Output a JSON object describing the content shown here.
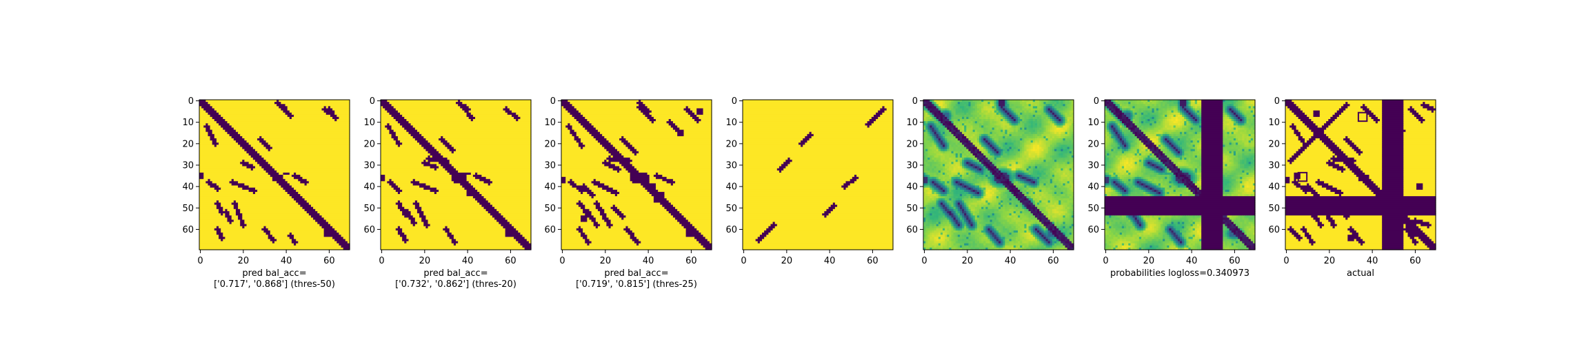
{
  "figure": {
    "colors": {
      "low": "#440154",
      "high": "#fde725"
    },
    "colormap": [
      "#440154",
      "#31688e",
      "#21918c",
      "#35b779",
      "#90d743",
      "#fde725"
    ]
  },
  "chart_data": [
    {
      "type": "heatmap",
      "panel": 1,
      "caption": [
        "pred bal_acc=",
        "['0.717', '0.868'] (thres-50)"
      ],
      "x_ticks": [
        0,
        20,
        40,
        60
      ],
      "y_ticks": [
        0,
        10,
        20,
        30,
        40,
        50,
        60
      ],
      "xlim": [
        0,
        69
      ],
      "ylim": [
        69,
        0
      ],
      "values_kind": "binary",
      "diagonal_width": 2,
      "segments": [
        [
          4,
          38,
          8,
          41
        ],
        [
          15,
          38,
          25,
          42
        ],
        [
          38,
          3,
          42,
          7
        ],
        [
          3,
          12,
          7,
          20
        ],
        [
          30,
          60,
          34,
          65
        ],
        [
          44,
          35,
          49,
          38
        ],
        [
          36,
          1,
          39,
          3
        ],
        [
          58,
          4,
          62,
          7
        ],
        [
          8,
          48,
          10,
          52
        ],
        [
          12,
          52,
          14,
          56
        ],
        [
          8,
          60,
          10,
          64
        ],
        [
          16,
          48,
          20,
          58
        ],
        [
          42,
          63,
          44,
          66
        ],
        [
          60,
          4,
          63,
          8
        ],
        [
          20,
          29,
          24,
          31
        ],
        [
          28,
          18,
          32,
          22
        ]
      ],
      "blobs": [
        [
          0,
          35,
          2,
          1.5,
          0
        ],
        [
          60,
          62,
          2.5,
          2,
          0
        ],
        [
          36,
          36,
          3,
          2,
          0
        ],
        [
          40,
          34,
          2,
          1,
          0
        ]
      ]
    },
    {
      "type": "heatmap",
      "panel": 2,
      "caption": [
        "pred bal_acc=",
        "['0.732', '0.862'] (thres-20)"
      ],
      "x_ticks": [
        0,
        20,
        40,
        60
      ],
      "y_ticks": [
        0,
        10,
        20,
        30,
        40,
        50,
        60
      ],
      "xlim": [
        0,
        69
      ],
      "ylim": [
        69,
        0
      ],
      "values_kind": "binary",
      "diagonal_width": 2,
      "segments": [
        [
          4,
          38,
          8,
          42
        ],
        [
          15,
          38,
          25,
          42
        ],
        [
          38,
          3,
          42,
          8
        ],
        [
          3,
          12,
          8,
          20
        ],
        [
          30,
          60,
          34,
          66
        ],
        [
          44,
          35,
          50,
          38
        ],
        [
          36,
          1,
          40,
          4
        ],
        [
          58,
          4,
          63,
          8
        ],
        [
          8,
          48,
          11,
          53
        ],
        [
          12,
          52,
          15,
          57
        ],
        [
          8,
          60,
          11,
          65
        ],
        [
          16,
          48,
          21,
          58
        ],
        [
          20,
          29,
          25,
          31
        ],
        [
          28,
          18,
          33,
          23
        ],
        [
          22,
          27,
          30,
          28
        ]
      ],
      "blobs": [
        [
          0,
          36,
          2,
          1.5,
          0
        ],
        [
          60,
          62,
          3,
          2,
          0
        ],
        [
          36,
          36,
          4,
          3,
          0
        ],
        [
          46,
          46,
          2,
          2,
          0
        ],
        [
          40,
          34,
          2,
          1,
          0
        ],
        [
          42,
          43,
          3,
          2,
          0
        ]
      ]
    },
    {
      "type": "heatmap",
      "panel": 3,
      "caption": [
        "pred bal_acc=",
        "['0.719', '0.815'] (thres-25)"
      ],
      "x_ticks": [
        0,
        20,
        40,
        60
      ],
      "y_ticks": [
        0,
        10,
        20,
        30,
        40,
        50,
        60
      ],
      "xlim": [
        0,
        69
      ],
      "ylim": [
        69,
        0
      ],
      "values_kind": "binary",
      "diagonal_width": 2,
      "segments": [
        [
          4,
          38,
          9,
          42
        ],
        [
          15,
          38,
          25,
          43
        ],
        [
          36,
          3,
          42,
          9
        ],
        [
          3,
          12,
          9,
          21
        ],
        [
          30,
          60,
          35,
          66
        ],
        [
          44,
          35,
          51,
          38
        ],
        [
          36,
          1,
          40,
          5
        ],
        [
          58,
          4,
          63,
          9
        ],
        [
          8,
          48,
          12,
          53
        ],
        [
          12,
          52,
          16,
          58
        ],
        [
          8,
          60,
          12,
          66
        ],
        [
          16,
          48,
          22,
          58
        ],
        [
          20,
          29,
          26,
          32
        ],
        [
          28,
          18,
          34,
          24
        ],
        [
          22,
          27,
          31,
          28
        ],
        [
          10,
          40,
          14,
          44
        ],
        [
          50,
          10,
          54,
          14
        ],
        [
          24,
          50,
          28,
          54
        ]
      ],
      "blobs": [
        [
          0,
          37,
          2,
          2,
          0
        ],
        [
          60,
          62,
          3,
          2,
          0
        ],
        [
          36,
          36,
          5,
          3,
          0
        ],
        [
          45,
          45,
          3,
          3,
          0
        ],
        [
          42,
          40,
          2,
          2,
          0
        ],
        [
          55,
          15,
          2,
          2,
          0
        ],
        [
          64,
          5,
          2,
          2,
          0
        ],
        [
          10,
          55,
          2,
          2,
          0
        ]
      ]
    },
    {
      "type": "heatmap",
      "panel": 4,
      "caption": [],
      "x_ticks": [
        0,
        20,
        40,
        60
      ],
      "y_ticks": [
        0,
        10,
        20,
        30,
        40,
        50,
        60
      ],
      "xlim": [
        0,
        69
      ],
      "ylim": [
        69,
        0
      ],
      "values_kind": "binary",
      "diagonal_width": 0,
      "segments": [
        [
          7,
          65,
          14,
          58
        ],
        [
          17,
          32,
          21,
          28
        ],
        [
          27,
          20,
          31,
          16
        ],
        [
          38,
          53,
          42,
          49
        ],
        [
          47,
          40,
          52,
          36
        ],
        [
          58,
          11,
          65,
          4
        ]
      ],
      "blobs": []
    },
    {
      "type": "heatmap",
      "panel": 5,
      "caption": [],
      "x_ticks": [
        0,
        20,
        40,
        60
      ],
      "y_ticks": [
        0,
        10,
        20,
        30,
        40,
        50,
        60
      ],
      "xlim": [
        0,
        69
      ],
      "ylim": [
        69,
        0
      ],
      "values_kind": "continuous",
      "diagonal_width": 2,
      "segments": [
        [
          4,
          38,
          9,
          42
        ],
        [
          15,
          38,
          25,
          43
        ],
        [
          36,
          3,
          42,
          9
        ],
        [
          3,
          12,
          9,
          21
        ],
        [
          30,
          60,
          35,
          66
        ],
        [
          44,
          35,
          51,
          38
        ],
        [
          58,
          4,
          63,
          9
        ],
        [
          8,
          48,
          12,
          53
        ],
        [
          12,
          52,
          16,
          58
        ],
        [
          16,
          48,
          22,
          58
        ],
        [
          20,
          29,
          26,
          32
        ],
        [
          28,
          18,
          34,
          24
        ],
        [
          52,
          60,
          58,
          66
        ],
        [
          2,
          2,
          10,
          10
        ]
      ],
      "blobs": [
        [
          36,
          36,
          4,
          3,
          0.1
        ],
        [
          0,
          37,
          2,
          2,
          0.1
        ],
        [
          36,
          1,
          2,
          2,
          0.05
        ],
        [
          60,
          62,
          3,
          2,
          0.2
        ],
        [
          10,
          7,
          2,
          2,
          0.2
        ],
        [
          48,
          48,
          2,
          2,
          0.2
        ]
      ]
    },
    {
      "type": "heatmap",
      "panel": 6,
      "caption": [
        "probabilities logloss=0.340973"
      ],
      "x_ticks": [
        0,
        20,
        40,
        60
      ],
      "y_ticks": [
        0,
        10,
        20,
        30,
        40,
        50,
        60
      ],
      "xlim": [
        0,
        69
      ],
      "ylim": [
        69,
        0
      ],
      "values_kind": "continuous",
      "diagonal_width": 2,
      "bands": {
        "columns": [
          45,
          54
        ],
        "rows": [
          45,
          53
        ]
      },
      "segments": [
        [
          4,
          38,
          9,
          42
        ],
        [
          15,
          38,
          25,
          43
        ],
        [
          36,
          3,
          42,
          9
        ],
        [
          3,
          12,
          9,
          21
        ],
        [
          30,
          60,
          35,
          66
        ],
        [
          58,
          4,
          63,
          9
        ],
        [
          8,
          48,
          12,
          53
        ],
        [
          12,
          52,
          16,
          58
        ],
        [
          20,
          29,
          26,
          32
        ],
        [
          28,
          18,
          34,
          24
        ],
        [
          2,
          2,
          10,
          10
        ]
      ],
      "blobs": [
        [
          36,
          36,
          4,
          3,
          0.1
        ],
        [
          0,
          37,
          2,
          2,
          0.1
        ],
        [
          36,
          1,
          2,
          2,
          0.05
        ],
        [
          60,
          62,
          3,
          2,
          0.2
        ],
        [
          10,
          7,
          2,
          2,
          0.2
        ]
      ]
    },
    {
      "type": "heatmap",
      "panel": 7,
      "caption": [
        "actual"
      ],
      "x_ticks": [
        0,
        20,
        40,
        60
      ],
      "y_ticks": [
        0,
        10,
        20,
        30,
        40,
        50,
        60
      ],
      "xlim": [
        0,
        69
      ],
      "ylim": [
        69,
        0
      ],
      "values_kind": "binary",
      "diagonal_width": 2,
      "bands": {
        "columns": [
          45,
          54
        ],
        "rows": [
          45,
          53
        ]
      },
      "segments": [
        [
          2,
          28,
          28,
          2
        ],
        [
          4,
          38,
          9,
          42
        ],
        [
          15,
          38,
          25,
          43
        ],
        [
          36,
          3,
          42,
          9
        ],
        [
          3,
          12,
          9,
          21
        ],
        [
          30,
          60,
          35,
          66
        ],
        [
          58,
          4,
          63,
          9
        ],
        [
          8,
          48,
          12,
          53
        ],
        [
          12,
          52,
          16,
          58
        ],
        [
          8,
          60,
          12,
          66
        ],
        [
          16,
          48,
          22,
          58
        ],
        [
          20,
          29,
          26,
          32
        ],
        [
          28,
          18,
          34,
          24
        ],
        [
          22,
          27,
          31,
          28
        ],
        [
          10,
          40,
          14,
          44
        ],
        [
          50,
          10,
          54,
          14
        ],
        [
          24,
          50,
          28,
          54
        ],
        [
          2,
          60,
          6,
          64
        ],
        [
          56,
          60,
          60,
          66
        ],
        [
          60,
          56,
          66,
          58
        ],
        [
          64,
          2,
          68,
          4
        ]
      ],
      "blobs": [
        [
          36,
          36,
          3,
          2,
          0
        ],
        [
          0,
          37,
          2,
          2,
          0
        ],
        [
          60,
          62,
          3,
          2,
          0
        ],
        [
          14,
          6,
          2,
          2,
          0
        ],
        [
          5,
          35,
          2,
          2,
          0
        ],
        [
          62,
          40,
          2,
          2,
          0
        ],
        [
          30,
          64,
          2,
          2,
          0
        ]
      ],
      "boxes": [
        [
          6,
          34,
          10,
          38
        ],
        [
          34,
          6,
          38,
          10
        ]
      ]
    }
  ]
}
